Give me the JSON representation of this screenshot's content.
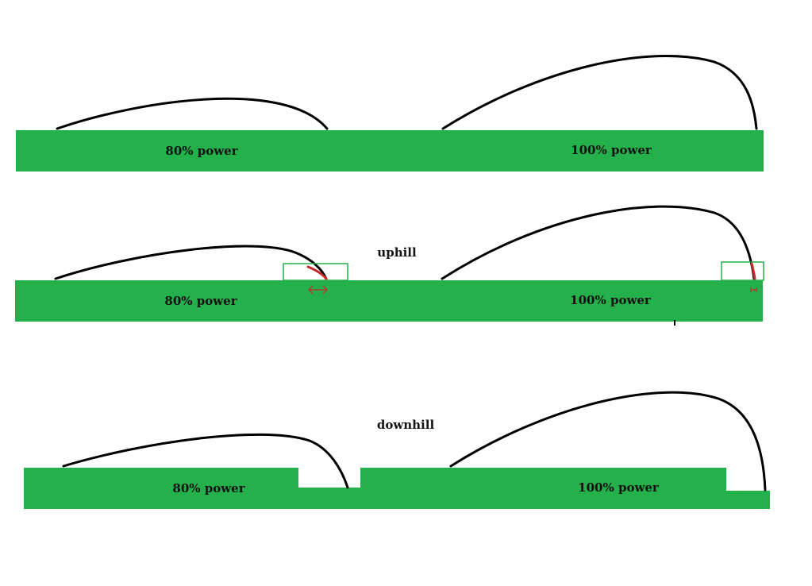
{
  "colors": {
    "ground": "#24b04b",
    "trajectory": "#000000",
    "highlight": "#c8282a",
    "box": "#24b04b"
  },
  "panels": {
    "flat": {
      "left_label": "80% power",
      "right_label": "100% power"
    },
    "uphill": {
      "title": "uphill",
      "left_label": "80% power",
      "right_label": "100% power"
    },
    "downhill": {
      "title": "downhill",
      "left_label": "80% power",
      "right_label": "100% power"
    }
  }
}
